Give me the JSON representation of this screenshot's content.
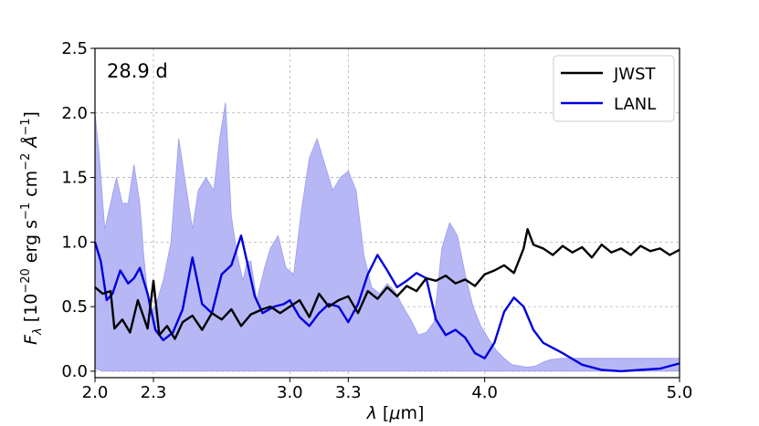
{
  "chart_data": {
    "type": "line",
    "title": "",
    "annotation": "28.9 d",
    "xlabel": "λ [μm]",
    "ylabel": "F_λ [10^-20 erg s^-1 cm^-2 Å^-1]",
    "xlim": [
      2.0,
      5.0
    ],
    "ylim": [
      -0.05,
      2.5
    ],
    "xticks": [
      2.0,
      2.3,
      3.0,
      3.3,
      4.0,
      5.0
    ],
    "xtick_labels": [
      "2.0",
      "2.3",
      "3.0",
      "3.3",
      "4.0",
      "5.0"
    ],
    "yticks": [
      0.0,
      0.5,
      1.0,
      1.5,
      2.0,
      2.5
    ],
    "ytick_labels": [
      "0.0",
      "0.5",
      "1.0",
      "1.5",
      "2.0",
      "2.5"
    ],
    "grid": true,
    "legend_position": "top-right",
    "series": [
      {
        "name": "JWST",
        "color": "#000000",
        "x": [
          2.0,
          2.04,
          2.08,
          2.1,
          2.14,
          2.18,
          2.22,
          2.27,
          2.3,
          2.33,
          2.37,
          2.41,
          2.45,
          2.5,
          2.55,
          2.6,
          2.65,
          2.7,
          2.75,
          2.8,
          2.86,
          2.9,
          2.95,
          3.0,
          3.05,
          3.1,
          3.15,
          3.2,
          3.25,
          3.3,
          3.35,
          3.4,
          3.45,
          3.5,
          3.55,
          3.6,
          3.65,
          3.7,
          3.75,
          3.8,
          3.85,
          3.9,
          3.95,
          4.0,
          4.05,
          4.1,
          4.15,
          4.2,
          4.22,
          4.25,
          4.3,
          4.35,
          4.4,
          4.45,
          4.5,
          4.55,
          4.6,
          4.65,
          4.7,
          4.75,
          4.8,
          4.85,
          4.9,
          4.95,
          5.0
        ],
        "y": [
          0.65,
          0.6,
          0.62,
          0.33,
          0.4,
          0.3,
          0.55,
          0.33,
          0.7,
          0.28,
          0.35,
          0.25,
          0.38,
          0.43,
          0.32,
          0.45,
          0.4,
          0.48,
          0.35,
          0.44,
          0.48,
          0.5,
          0.45,
          0.5,
          0.55,
          0.42,
          0.6,
          0.5,
          0.55,
          0.58,
          0.45,
          0.62,
          0.56,
          0.65,
          0.58,
          0.66,
          0.62,
          0.72,
          0.7,
          0.74,
          0.68,
          0.71,
          0.66,
          0.75,
          0.78,
          0.82,
          0.76,
          0.95,
          1.1,
          0.98,
          0.95,
          0.9,
          0.97,
          0.92,
          0.96,
          0.88,
          0.98,
          0.92,
          0.95,
          0.9,
          0.97,
          0.93,
          0.95,
          0.9,
          0.94
        ]
      },
      {
        "name": "LANL",
        "color": "#0000dd",
        "x": [
          2.0,
          2.03,
          2.06,
          2.09,
          2.13,
          2.17,
          2.2,
          2.23,
          2.27,
          2.31,
          2.35,
          2.4,
          2.45,
          2.5,
          2.55,
          2.6,
          2.65,
          2.7,
          2.75,
          2.78,
          2.82,
          2.86,
          2.92,
          2.97,
          3.0,
          3.05,
          3.1,
          3.15,
          3.2,
          3.25,
          3.3,
          3.35,
          3.4,
          3.45,
          3.5,
          3.55,
          3.6,
          3.65,
          3.7,
          3.75,
          3.8,
          3.85,
          3.9,
          3.95,
          4.0,
          4.05,
          4.1,
          4.15,
          4.2,
          4.25,
          4.3,
          4.35,
          4.4,
          4.5,
          4.6,
          4.7,
          4.8,
          4.9,
          5.0
        ],
        "y": [
          1.0,
          0.85,
          0.55,
          0.6,
          0.78,
          0.68,
          0.72,
          0.8,
          0.6,
          0.32,
          0.24,
          0.3,
          0.48,
          0.88,
          0.52,
          0.45,
          0.75,
          0.82,
          1.05,
          0.85,
          0.58,
          0.45,
          0.5,
          0.52,
          0.55,
          0.42,
          0.35,
          0.45,
          0.52,
          0.5,
          0.38,
          0.52,
          0.75,
          0.9,
          0.78,
          0.65,
          0.7,
          0.76,
          0.72,
          0.4,
          0.28,
          0.32,
          0.26,
          0.14,
          0.1,
          0.22,
          0.46,
          0.57,
          0.5,
          0.32,
          0.22,
          0.18,
          0.14,
          0.05,
          0.01,
          0.0,
          0.01,
          0.02,
          0.06
        ]
      }
    ],
    "band": {
      "series": "LANL",
      "color": "#b3b3f5",
      "x": [
        2.0,
        2.02,
        2.05,
        2.08,
        2.11,
        2.14,
        2.17,
        2.2,
        2.23,
        2.25,
        2.28,
        2.31,
        2.35,
        2.39,
        2.43,
        2.47,
        2.5,
        2.53,
        2.57,
        2.61,
        2.64,
        2.67,
        2.7,
        2.73,
        2.76,
        2.78,
        2.8,
        2.83,
        2.87,
        2.9,
        2.94,
        2.98,
        3.02,
        3.06,
        3.1,
        3.14,
        3.18,
        3.22,
        3.26,
        3.3,
        3.34,
        3.38,
        3.42,
        3.46,
        3.5,
        3.54,
        3.58,
        3.62,
        3.66,
        3.7,
        3.74,
        3.78,
        3.82,
        3.86,
        3.9,
        3.94,
        3.98,
        4.02,
        4.06,
        4.1,
        4.14,
        4.18,
        4.22,
        4.26,
        4.3,
        4.34,
        4.4,
        4.5,
        4.6,
        4.7,
        4.8,
        4.9,
        5.0
      ],
      "upper": [
        2.0,
        1.7,
        1.1,
        1.3,
        1.5,
        1.3,
        1.3,
        1.6,
        1.3,
        0.9,
        0.45,
        0.5,
        0.7,
        1.0,
        1.8,
        1.4,
        1.1,
        1.4,
        1.5,
        1.4,
        1.8,
        2.08,
        1.2,
        0.9,
        0.7,
        0.85,
        0.85,
        0.55,
        0.8,
        0.95,
        1.05,
        0.8,
        0.75,
        1.25,
        1.65,
        1.8,
        1.6,
        1.4,
        1.5,
        1.55,
        1.4,
        0.9,
        0.65,
        0.6,
        0.68,
        0.62,
        0.5,
        0.4,
        0.28,
        0.3,
        0.38,
        0.95,
        1.15,
        1.05,
        0.75,
        0.5,
        0.35,
        0.25,
        0.16,
        0.1,
        0.05,
        0.04,
        0.03,
        0.04,
        0.07,
        0.09,
        0.1,
        0.1,
        0.1,
        0.1,
        0.1,
        0.1,
        0.1
      ],
      "lower": [
        0.02,
        0.01,
        0.0,
        0.0,
        0.0,
        0.0,
        0.0,
        0.0,
        0.0,
        0.0,
        0.0,
        0.0,
        0.0,
        0.0,
        0.0,
        0.0,
        0.0,
        0.0,
        0.0,
        0.0,
        0.0,
        0.0,
        0.0,
        0.0,
        0.0,
        0.0,
        0.0,
        0.0,
        0.0,
        0.0,
        0.0,
        0.0,
        0.0,
        0.0,
        0.0,
        0.0,
        0.0,
        0.0,
        0.0,
        0.0,
        0.0,
        0.0,
        0.0,
        0.0,
        0.0,
        0.0,
        0.0,
        0.0,
        0.0,
        0.0,
        0.0,
        0.0,
        0.0,
        0.0,
        0.0,
        0.0,
        0.0,
        0.0,
        0.0,
        0.0,
        0.0,
        0.0,
        0.0,
        0.0,
        0.0,
        0.0,
        0.0,
        0.0,
        0.0,
        0.0,
        0.0,
        0.0,
        0.0
      ]
    }
  }
}
